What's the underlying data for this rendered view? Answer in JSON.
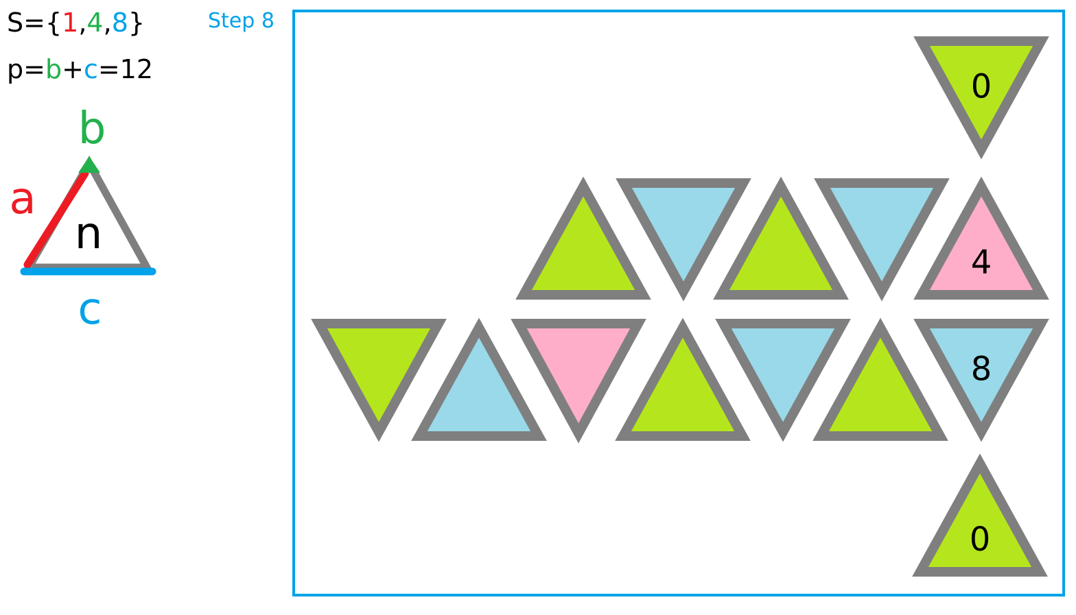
{
  "set": {
    "prefix": "S={",
    "items": [
      "1",
      "4",
      "8"
    ],
    "sep": ",",
    "suffix": "}"
  },
  "perimeter": {
    "prefix": "p=",
    "b": "b",
    "plus": "+",
    "c": "c",
    "eq": "=12"
  },
  "step_label": "Step 8",
  "legend": {
    "edge_a": "a",
    "vertex_b": "b",
    "edge_c": "c",
    "center": "n"
  },
  "colors": {
    "red": "#ed1c24",
    "green": "#22b14c",
    "blue": "#00a2e8",
    "lime": "#b5e61d",
    "light_blue": "#99d9ea",
    "pink": "#ffaec9",
    "outline": "#7f7f7f",
    "frame": "#00a2e8"
  },
  "tiles": [
    {
      "id": "t0",
      "dir": "down",
      "fill": "lime",
      "label": "0"
    },
    {
      "id": "t1",
      "dir": "up",
      "fill": "lime",
      "label": ""
    },
    {
      "id": "t2",
      "dir": "down",
      "fill": "light_blue",
      "label": ""
    },
    {
      "id": "t3",
      "dir": "up",
      "fill": "lime",
      "label": ""
    },
    {
      "id": "t4",
      "dir": "down",
      "fill": "light_blue",
      "label": ""
    },
    {
      "id": "t5",
      "dir": "up",
      "fill": "pink",
      "label": "4"
    },
    {
      "id": "t6",
      "dir": "down",
      "fill": "lime",
      "label": ""
    },
    {
      "id": "t7",
      "dir": "up",
      "fill": "light_blue",
      "label": ""
    },
    {
      "id": "t8",
      "dir": "down",
      "fill": "pink",
      "label": ""
    },
    {
      "id": "t9",
      "dir": "up",
      "fill": "lime",
      "label": ""
    },
    {
      "id": "t10",
      "dir": "down",
      "fill": "light_blue",
      "label": ""
    },
    {
      "id": "t11",
      "dir": "up",
      "fill": "lime",
      "label": ""
    },
    {
      "id": "t12",
      "dir": "down",
      "fill": "light_blue",
      "label": "8"
    },
    {
      "id": "t13",
      "dir": "up",
      "fill": "lime",
      "label": "0"
    }
  ]
}
